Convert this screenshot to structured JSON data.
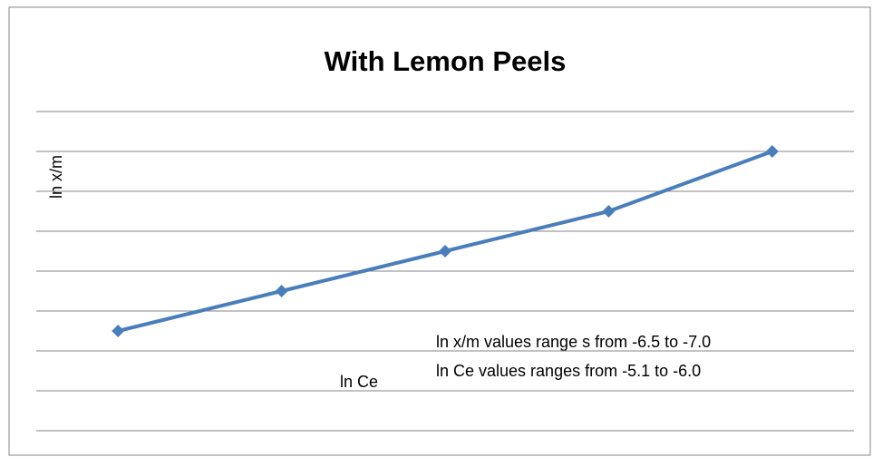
{
  "chart_data": {
    "type": "line",
    "title": "With Lemon Peels",
    "x_label": "ln Ce",
    "y_label": "ln x/m",
    "annotations": [
      "ln x/m values range s from -6.5 to -7.0",
      "ln Ce  values ranges from -5.1 to  -6.0"
    ],
    "categories": [
      null,
      null,
      null,
      null,
      null
    ],
    "series": [
      {
        "name": null,
        "color": "#4a7ebb",
        "values": [
          2.5,
          3.5,
          4.5,
          5.5,
          7
        ]
      }
    ],
    "ylim": [
      0,
      8
    ],
    "yticks": [
      0,
      1,
      2,
      3,
      4,
      5,
      6,
      7,
      8
    ],
    "grid": true
  }
}
